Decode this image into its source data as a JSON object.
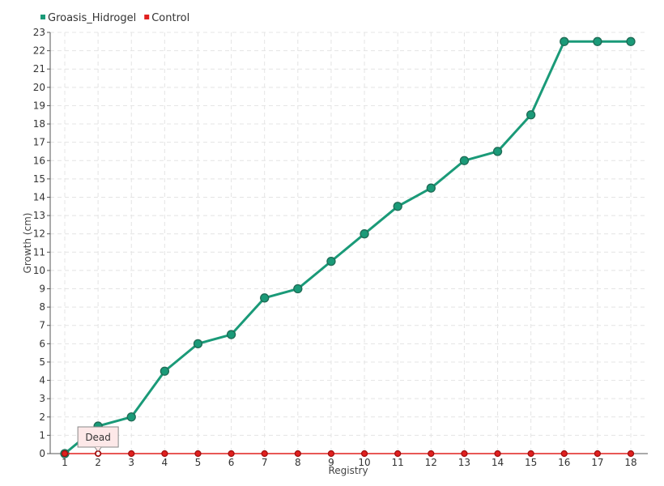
{
  "chart_data": {
    "type": "line",
    "xlabel": "Registry",
    "ylabel": "Growth (cm)",
    "x": [
      1,
      2,
      3,
      4,
      5,
      6,
      7,
      8,
      9,
      10,
      11,
      12,
      13,
      14,
      15,
      16,
      17,
      18
    ],
    "ylim": [
      0,
      23
    ],
    "grid": true,
    "legend_placement": "top-left",
    "series": [
      {
        "name": "Groasis_Hidrogel",
        "color": "#1a9a78",
        "values": [
          0,
          1.5,
          2,
          4.5,
          6,
          6.5,
          8.5,
          9,
          10.5,
          12,
          13.5,
          14.5,
          16,
          16.5,
          18.5,
          22.5,
          22.5,
          22.5
        ]
      },
      {
        "name": "Control",
        "color": "#e0201f",
        "values": [
          0,
          0,
          0,
          0,
          0,
          0,
          0,
          0,
          0,
          0,
          0,
          0,
          0,
          0,
          0,
          0,
          0,
          0
        ]
      }
    ],
    "annotations": [
      {
        "text": "Dead",
        "series": "Control",
        "x": 2,
        "y": 0
      }
    ]
  }
}
